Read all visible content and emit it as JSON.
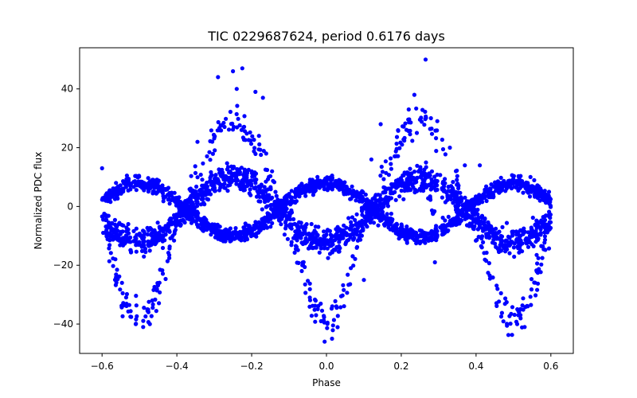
{
  "chart_data": {
    "type": "scatter",
    "title": "TIC 0229687624, period 0.6176 days",
    "xlabel": "Phase",
    "ylabel": "Normalized PDC flux",
    "xlim": [
      -0.66,
      0.66
    ],
    "ylim": [
      -50,
      54
    ],
    "xticks": [
      -0.6,
      -0.4,
      -0.2,
      0.0,
      0.2,
      0.4,
      0.6
    ],
    "xtick_labels": [
      "−0.6",
      "−0.4",
      "−0.2",
      "0.0",
      "0.2",
      "0.4",
      "0.6"
    ],
    "yticks": [
      -40,
      -20,
      0,
      20,
      40
    ],
    "ytick_labels": [
      "−40",
      "−20",
      "0",
      "20",
      "40"
    ],
    "grid": false,
    "marker_color": "#0000ff",
    "series": [
      {
        "phase_range": [
          -0.6,
          0.6
        ],
        "bands": [
          {
            "offset": 0,
            "amp_b": 11,
            "amp_a": 22,
            "spread": 5
          },
          {
            "offset": 0.25,
            "amp_b": 9,
            "amp_a": 4,
            "spread": 3
          },
          {
            "offset": 0,
            "amp_b": 16,
            "amp_a": 39,
            "spread": 4
          }
        ],
        "outliers": [
          {
            "x": -0.6,
            "y": 13
          },
          {
            "x": -0.555,
            "y": -6
          },
          {
            "x": -0.51,
            "y": -40
          },
          {
            "x": -0.49,
            "y": -41
          },
          {
            "x": -0.345,
            "y": 22
          },
          {
            "x": -0.29,
            "y": 44
          },
          {
            "x": -0.25,
            "y": 46
          },
          {
            "x": -0.24,
            "y": 40
          },
          {
            "x": -0.225,
            "y": 47
          },
          {
            "x": -0.19,
            "y": 39
          },
          {
            "x": -0.17,
            "y": 37
          },
          {
            "x": -0.04,
            "y": -6
          },
          {
            "x": -0.005,
            "y": -46
          },
          {
            "x": 0.015,
            "y": -45
          },
          {
            "x": 0.03,
            "y": -7
          },
          {
            "x": 0.1,
            "y": -25
          },
          {
            "x": 0.12,
            "y": 16
          },
          {
            "x": 0.145,
            "y": 28
          },
          {
            "x": 0.175,
            "y": -5
          },
          {
            "x": 0.22,
            "y": 33
          },
          {
            "x": 0.235,
            "y": 38
          },
          {
            "x": 0.265,
            "y": 50
          },
          {
            "x": 0.29,
            "y": -19
          },
          {
            "x": 0.32,
            "y": -8
          },
          {
            "x": 0.33,
            "y": 20
          },
          {
            "x": 0.37,
            "y": 14
          },
          {
            "x": 0.41,
            "y": 14
          },
          {
            "x": 0.53,
            "y": -41
          },
          {
            "x": 0.51,
            "y": -40
          },
          {
            "x": -0.53,
            "y": -6
          },
          {
            "x": 0.56,
            "y": -12
          }
        ],
        "feature_track": [
          {
            "x": 0.22,
            "y": 6
          },
          {
            "x": 0.24,
            "y": 5
          },
          {
            "x": 0.255,
            "y": 6
          },
          {
            "x": 0.265,
            "y": 7
          },
          {
            "x": 0.275,
            "y": 3
          },
          {
            "x": 0.285,
            "y": -2
          }
        ]
      }
    ]
  }
}
